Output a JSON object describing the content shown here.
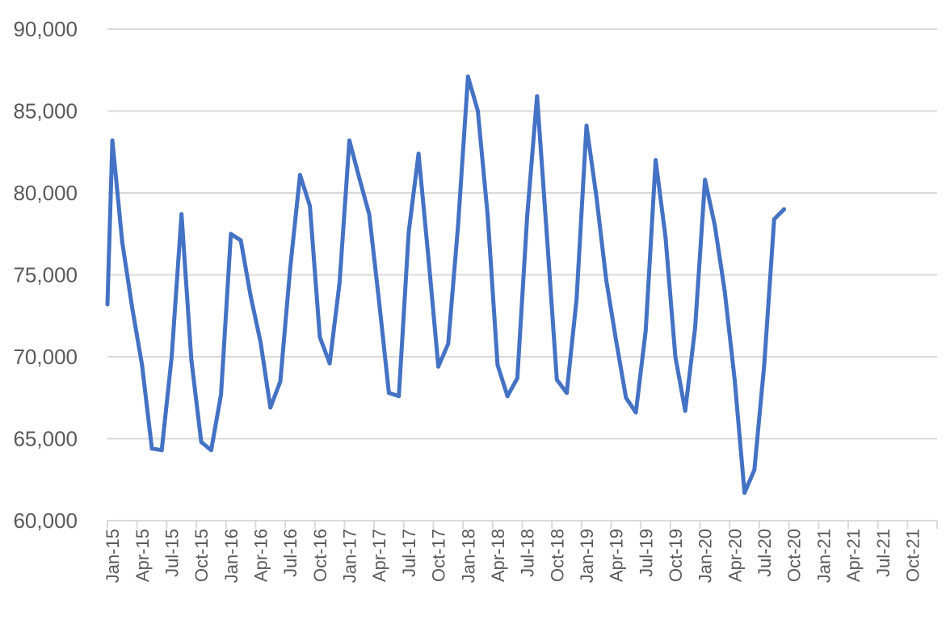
{
  "chart_data": {
    "type": "line",
    "title": "",
    "xlabel": "",
    "ylabel": "",
    "ylim": [
      60000,
      90000
    ],
    "yticks": [
      "60,000",
      "65,000",
      "70,000",
      "75,000",
      "80,000",
      "85,000",
      "90,000"
    ],
    "ytick_values": [
      60000,
      65000,
      70000,
      75000,
      80000,
      85000,
      90000
    ],
    "xticks": [
      "Jan-15",
      "Apr-15",
      "Jul-15",
      "Oct-15",
      "Jan-16",
      "Apr-16",
      "Jul-16",
      "Oct-16",
      "Jan-17",
      "Apr-17",
      "Jul-17",
      "Oct-17",
      "Jan-18",
      "Apr-18",
      "Jul-18",
      "Oct-18",
      "Jan-19",
      "Apr-19",
      "Jul-19",
      "Oct-19",
      "Jan-20",
      "Apr-20",
      "Jul-20",
      "Oct-20",
      "Jan-21",
      "Apr-21",
      "Jul-21",
      "Oct-21"
    ],
    "x_range": [
      "Jan-15",
      "Dec-21"
    ],
    "grid": true,
    "legend": "none",
    "series": [
      {
        "color": "#4472c4",
        "x": [
          "Dec-14",
          "Jan-15",
          "Feb-15",
          "Mar-15",
          "Apr-15",
          "May-15",
          "Jun-15",
          "Jul-15",
          "Aug-15",
          "Sep-15",
          "Oct-15",
          "Nov-15",
          "Dec-15",
          "Jan-16",
          "Feb-16",
          "Mar-16",
          "Apr-16",
          "May-16",
          "Jun-16",
          "Jul-16",
          "Aug-16",
          "Sep-16",
          "Oct-16",
          "Nov-16",
          "Dec-16",
          "Jan-17",
          "Feb-17",
          "Mar-17",
          "Apr-17",
          "May-17",
          "Jun-17",
          "Jul-17",
          "Aug-17",
          "Sep-17",
          "Oct-17",
          "Nov-17",
          "Dec-17",
          "Jan-18",
          "Feb-18",
          "Mar-18",
          "Apr-18",
          "May-18",
          "Jun-18",
          "Jul-18",
          "Aug-18",
          "Sep-18",
          "Oct-18",
          "Nov-18",
          "Dec-18",
          "Jan-19",
          "Feb-19",
          "Mar-19",
          "Apr-19",
          "May-19",
          "Jun-19",
          "Jul-19",
          "Aug-19",
          "Sep-19",
          "Oct-19",
          "Nov-19",
          "Dec-19",
          "Jan-20",
          "Feb-20",
          "Mar-20",
          "Apr-20",
          "May-20",
          "Jun-20",
          "Jul-20",
          "Aug-20",
          "Sep-20"
        ],
        "values": [
          73200,
          83200,
          77000,
          73000,
          69500,
          64400,
          64300,
          70000,
          78700,
          69800,
          64800,
          64300,
          67700,
          77500,
          77100,
          73700,
          70900,
          66900,
          68500,
          75400,
          81100,
          79200,
          71200,
          69600,
          74500,
          83200,
          80900,
          78700,
          73400,
          67800,
          67600,
          77600,
          82400,
          76000,
          69400,
          70800,
          78000,
          87100,
          85000,
          78600,
          69500,
          67600,
          68700,
          78600,
          85900,
          77300,
          68600,
          67800,
          73500,
          84100,
          79800,
          74700,
          71000,
          67500,
          66600,
          71600,
          82000,
          77300,
          70000,
          66700,
          71800,
          80800,
          78000,
          74000,
          68600,
          61700,
          63100,
          69500,
          78400,
          79000
        ]
      }
    ]
  }
}
